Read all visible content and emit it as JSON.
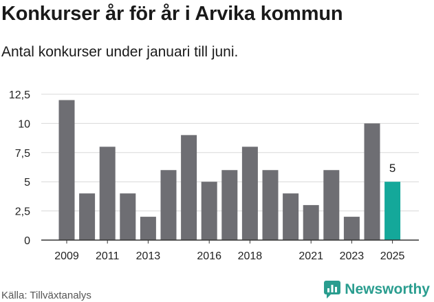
{
  "header": {
    "title": "Konkurser år för år i Arvika kommun",
    "subtitle": "Antal konkurser under januari till juni."
  },
  "footer": {
    "source": "Källa: Tillväxtanalys",
    "brand": "Newsworthy"
  },
  "colors": {
    "bar": "#6e6e73",
    "highlight": "#14a89a",
    "grid": "#d8d8d8",
    "brand": "#2a9d8f"
  },
  "icons": {
    "brand_logo": "chat-bar-chart-icon"
  },
  "chart_data": {
    "type": "bar",
    "categories": [
      "2009",
      "2010",
      "2011",
      "2012",
      "2013",
      "2014",
      "2015",
      "2016",
      "2017",
      "2018",
      "2019",
      "2020",
      "2021",
      "2022",
      "2023",
      "2024",
      "2025"
    ],
    "values": [
      12,
      4,
      8,
      4,
      2,
      6,
      9,
      5,
      6,
      8,
      6,
      4,
      3,
      6,
      2,
      10,
      5
    ],
    "x_tick_labels": [
      "2009",
      "2011",
      "2013",
      "2016",
      "2018",
      "2021",
      "2023",
      "2025"
    ],
    "y_ticks": [
      0,
      2.5,
      5,
      7.5,
      10,
      12.5
    ],
    "y_tick_labels": [
      "0",
      "2,5",
      "5",
      "7,5",
      "10",
      "12,5"
    ],
    "ylim": [
      0,
      12.5
    ],
    "highlight_category": "2025",
    "data_labels": [
      {
        "category": "2025",
        "text": "5"
      }
    ],
    "grid": true,
    "legend": "none"
  }
}
